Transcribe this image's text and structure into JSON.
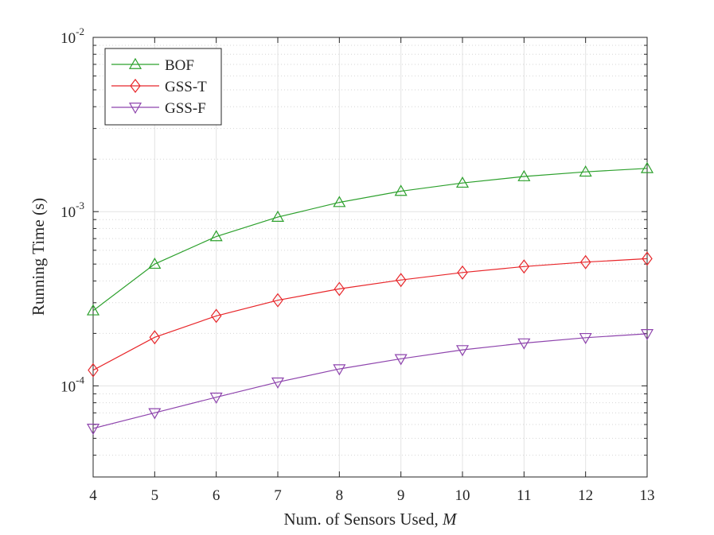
{
  "chart_data": {
    "type": "line",
    "title": "",
    "xlabel": "Num. of Sensors Used, ",
    "xlabel_var": "M",
    "ylabel": "Running Time (s)",
    "yscale": "log",
    "xlim": [
      4,
      13
    ],
    "ylim": [
      3e-05,
      0.01
    ],
    "grid": true,
    "legend_position": "top-left",
    "x": [
      4,
      5,
      6,
      7,
      8,
      9,
      10,
      11,
      12,
      13
    ],
    "x_tick_labels": [
      "4",
      "5",
      "6",
      "7",
      "8",
      "9",
      "10",
      "11",
      "12",
      "13"
    ],
    "y_ticks": [
      {
        "value": 0.0001,
        "base": "10",
        "exp": "-4"
      },
      {
        "value": 0.001,
        "base": "10",
        "exp": "-3"
      },
      {
        "value": 0.01,
        "base": "10",
        "exp": "-2"
      }
    ],
    "series": [
      {
        "name": "BOF",
        "color": "#2ca02c",
        "marker": "triangle-up",
        "values": [
          0.00027,
          0.0005,
          0.00072,
          0.00093,
          0.00113,
          0.00131,
          0.00146,
          0.00159,
          0.00169,
          0.00177
        ]
      },
      {
        "name": "GSS-T",
        "color": "#e8262a",
        "marker": "diamond",
        "values": [
          0.000123,
          0.00019,
          0.000252,
          0.00031,
          0.00036,
          0.000405,
          0.000447,
          0.000484,
          0.000513,
          0.000537
        ]
      },
      {
        "name": "GSS-F",
        "color": "#8e44ad",
        "marker": "triangle-down",
        "values": [
          5.7e-05,
          7e-05,
          8.6e-05,
          0.000105,
          0.000125,
          0.000143,
          0.000161,
          0.000176,
          0.000189,
          0.000199
        ]
      }
    ]
  }
}
